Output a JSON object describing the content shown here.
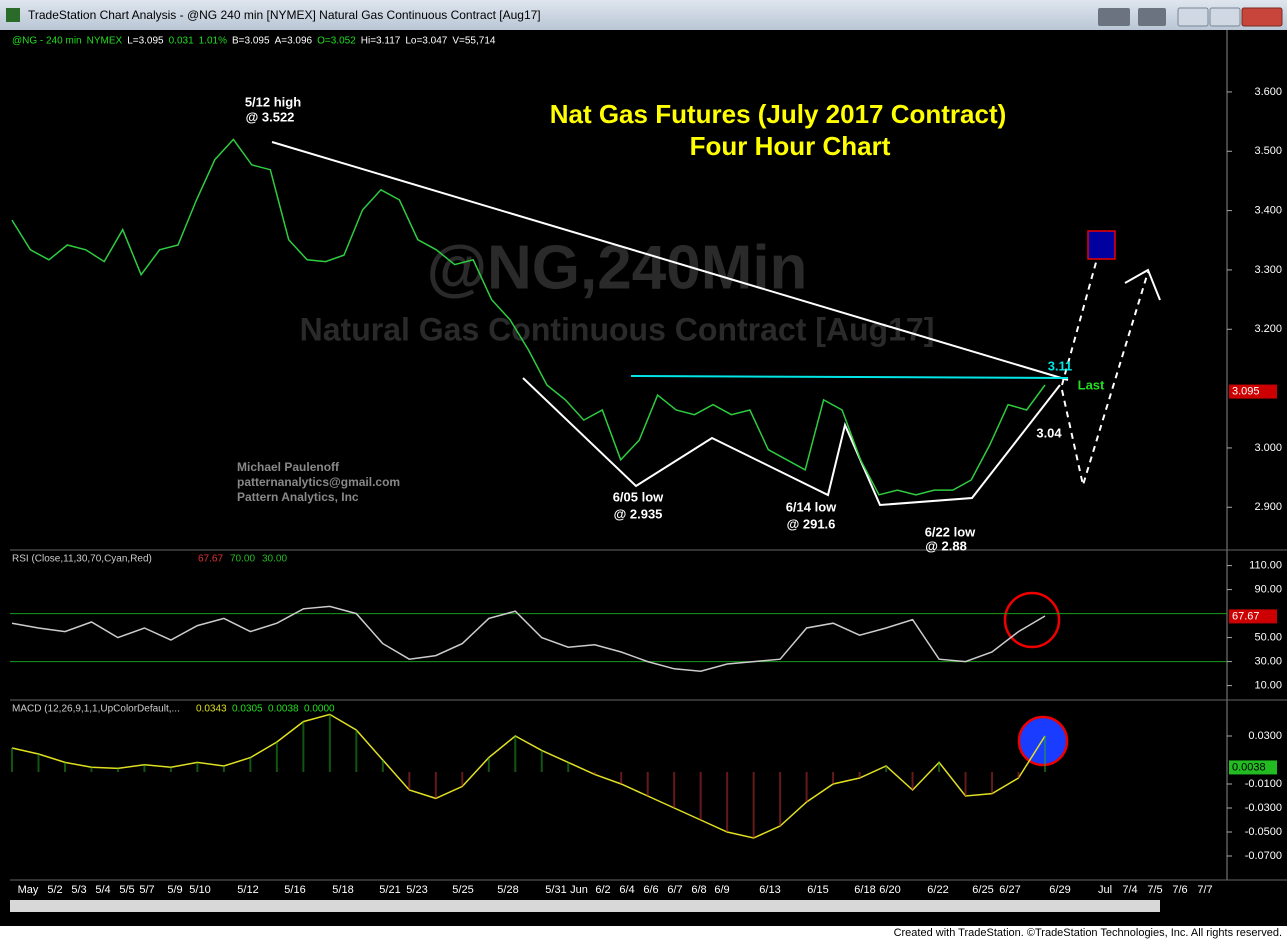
{
  "title_bar": {
    "title": "TradeStation Chart Analysis - @NG 240 min [NYMEX] Natural Gas Continuous Contract [Aug17]"
  },
  "info_line": [
    "@NG - 240 min",
    "NYMEX",
    "L=3.095",
    "0.031",
    "1.01%",
    "B=3.095",
    "A=3.096",
    "O=3.052",
    "Hi=3.117",
    "Lo=3.047",
    "V=55,714"
  ],
  "price_chart": {
    "title": "Nat Gas Futures (July 2017 Contract)",
    "subtitle": "Four Hour Chart",
    "watermark": "@NG,240Min",
    "watermark_sub": "Natural Gas Continuous Contract [Aug17]",
    "ylim": [
      2.828,
      3.701
    ],
    "yticks": [
      {
        "value": 3.6,
        "label": "3.600"
      },
      {
        "value": 3.5,
        "label": "3.500"
      },
      {
        "value": 3.4,
        "label": "3.400"
      },
      {
        "value": 3.3,
        "label": "3.300"
      },
      {
        "value": 3.2,
        "label": "3.200"
      },
      {
        "value": 3.0,
        "label": "3.000"
      },
      {
        "value": 2.9,
        "label": "2.900"
      }
    ],
    "last": 3.095,
    "values": [
      3.384,
      3.334,
      3.317,
      3.342,
      3.334,
      3.314,
      3.368,
      3.292,
      3.334,
      3.342,
      3.418,
      3.486,
      3.52,
      3.477,
      3.469,
      3.351,
      3.317,
      3.314,
      3.325,
      3.401,
      3.435,
      3.418,
      3.351,
      3.334,
      3.309,
      3.317,
      3.25,
      3.216,
      3.165,
      3.106,
      3.081,
      3.047,
      3.064,
      2.98,
      3.013,
      3.089,
      3.064,
      3.056,
      3.073,
      3.056,
      3.064,
      2.997,
      2.98,
      2.963,
      3.081,
      3.064,
      2.98,
      2.921,
      2.929,
      2.921,
      2.929,
      2.929,
      2.946,
      3.005,
      3.073,
      3.064,
      3.106
    ],
    "annotations": {
      "high": [
        "5/12 high",
        "@ 3.522"
      ],
      "low1": [
        "6/05 low",
        "@ 2.935"
      ],
      "low2": [
        "6/14 low",
        "@ 291.6"
      ],
      "low3": [
        "6/22 low",
        "@ 2.88"
      ],
      "resist": "3.11",
      "last": "Last",
      "support": "3.04",
      "author": [
        "Michael Paulenoff",
        "patternanalytics@gmail.com",
        "Pattern Analytics, Inc"
      ]
    }
  },
  "rsi": {
    "label": "RSI (Close,11,30,70,Cyan,Red)",
    "legend": [
      "67.67",
      "70.00",
      "30.00"
    ],
    "ylim": [
      -2,
      123
    ],
    "yticks": [
      {
        "value": 110,
        "label": "110.00"
      },
      {
        "value": 90,
        "label": "90.00"
      },
      {
        "value": 50,
        "label": "50.00"
      },
      {
        "value": 30,
        "label": "30.00"
      },
      {
        "value": 10,
        "label": "10.00"
      }
    ],
    "last": 67.67,
    "values": [
      62,
      58,
      55,
      63,
      50,
      58,
      48,
      60,
      66,
      55,
      62,
      74,
      76,
      70,
      45,
      32,
      35,
      45,
      66,
      72,
      50,
      42,
      44,
      38,
      30,
      24,
      22,
      28,
      30,
      32,
      58,
      62,
      52,
      58,
      65,
      32,
      30,
      38,
      55,
      68
    ]
  },
  "macd": {
    "label": "MACD (12,26,9,1,1,UpColorDefault,...",
    "legend": [
      "0.0343",
      "0.0305",
      "0.0038",
      "0.0000"
    ],
    "ylim": [
      -0.09,
      0.06
    ],
    "yticks": [
      {
        "value": 0.03,
        "label": "0.0300"
      },
      {
        "value": -0.01,
        "label": "-0.0100"
      },
      {
        "value": -0.03,
        "label": "-0.0300"
      },
      {
        "value": -0.05,
        "label": "-0.0500"
      },
      {
        "value": -0.07,
        "label": "-0.0700"
      }
    ],
    "last": 0.0038,
    "values": [
      0.02,
      0.015,
      0.008,
      0.004,
      0.003,
      0.006,
      0.004,
      0.008,
      0.005,
      0.012,
      0.025,
      0.042,
      0.048,
      0.035,
      0.01,
      -0.015,
      -0.022,
      -0.012,
      0.012,
      0.03,
      0.018,
      0.008,
      -0.002,
      -0.01,
      -0.02,
      -0.03,
      -0.04,
      -0.05,
      -0.055,
      -0.045,
      -0.025,
      -0.01,
      -0.005,
      0.005,
      -0.015,
      0.008,
      -0.02,
      -0.018,
      -0.005,
      0.03
    ]
  },
  "date_axis": [
    "May",
    "5/2",
    "5/3",
    "5/4",
    "5/5",
    "5/7",
    "5/9",
    "5/10",
    "5/12",
    "5/16",
    "5/18",
    "5/21",
    "5/23",
    "5/25",
    "5/28",
    "5/31",
    "Jun",
    "6/2",
    "6/4",
    "6/6",
    "6/7",
    "6/8",
    "6/9",
    "6/13",
    "6/15",
    "6/18",
    "6/20",
    "6/22",
    "6/25",
    "6/27",
    "6/29",
    "Jul",
    "7/4",
    "7/5",
    "7/6",
    "7/7"
  ],
  "footer": "Created with TradeStation. ©TradeStation Technologies, Inc. All rights reserved."
}
